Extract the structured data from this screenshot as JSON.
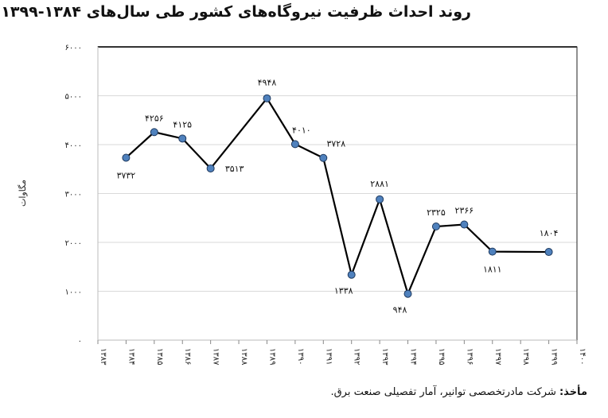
{
  "title": "روند احداث ظرفیت نیروگاه‌های کشور طی سال‌های ۱۳۸۴-۱۳۹۹",
  "source": {
    "label": "مأخذ:",
    "text": " شرکت مادرتخصصی توانیر، آمار تفصیلی صنعت برق."
  },
  "colors": {
    "line": "#000000",
    "marker": "#4f81bd",
    "grid": "#d9d9d9"
  },
  "chart_data": {
    "type": "line",
    "ylabel": "مگاوات",
    "ylim": [
      0,
      6000
    ],
    "yticks": [
      0,
      1000,
      2000,
      3000,
      4000,
      5000,
      6000
    ],
    "ytick_labels": [
      "۰",
      "۱۰۰۰",
      "۲۰۰۰",
      "۳۰۰۰",
      "۴۰۰۰",
      "۵۰۰۰",
      "۶۰۰۰"
    ],
    "xlim": [
      1383,
      1400
    ],
    "xtick_labels": [
      "۱۳۸۳",
      "۱۳۸۴",
      "۱۳۸۵",
      "۱۳۸۶",
      "۱۳۸۷",
      "۱۳۸۸",
      "۱۳۸۹",
      "۱۳۹۰",
      "۱۳۹۱",
      "۱۳۹۲",
      "۱۳۹۳",
      "۱۳۹۴",
      "۱۳۹۵",
      "۱۳۹۶",
      "۱۳۹۷",
      "۱۳۹۸",
      "۱۳۹۹",
      "۱۴۰۰"
    ],
    "grid": true,
    "x": [
      1384,
      1385,
      1386,
      1387,
      1389,
      1390,
      1391,
      1392,
      1393,
      1394,
      1395,
      1396,
      1397,
      1399
    ],
    "values": [
      3732,
      4256,
      4125,
      3513,
      4948,
      4010,
      3728,
      1338,
      2881,
      948,
      2325,
      2366,
      1811,
      1804
    ],
    "data_labels": [
      "۳۷۳۲",
      "۴۲۵۶",
      "۴۱۲۵",
      "۳۵۱۳",
      "۴۹۴۸",
      "۴۰۱۰",
      "۳۷۲۸",
      "۱۳۳۸",
      "۲۸۸۱",
      "۹۴۸",
      "۲۳۲۵",
      "۲۳۶۶",
      "۱۸۱۱",
      "۱۸۰۴"
    ]
  }
}
